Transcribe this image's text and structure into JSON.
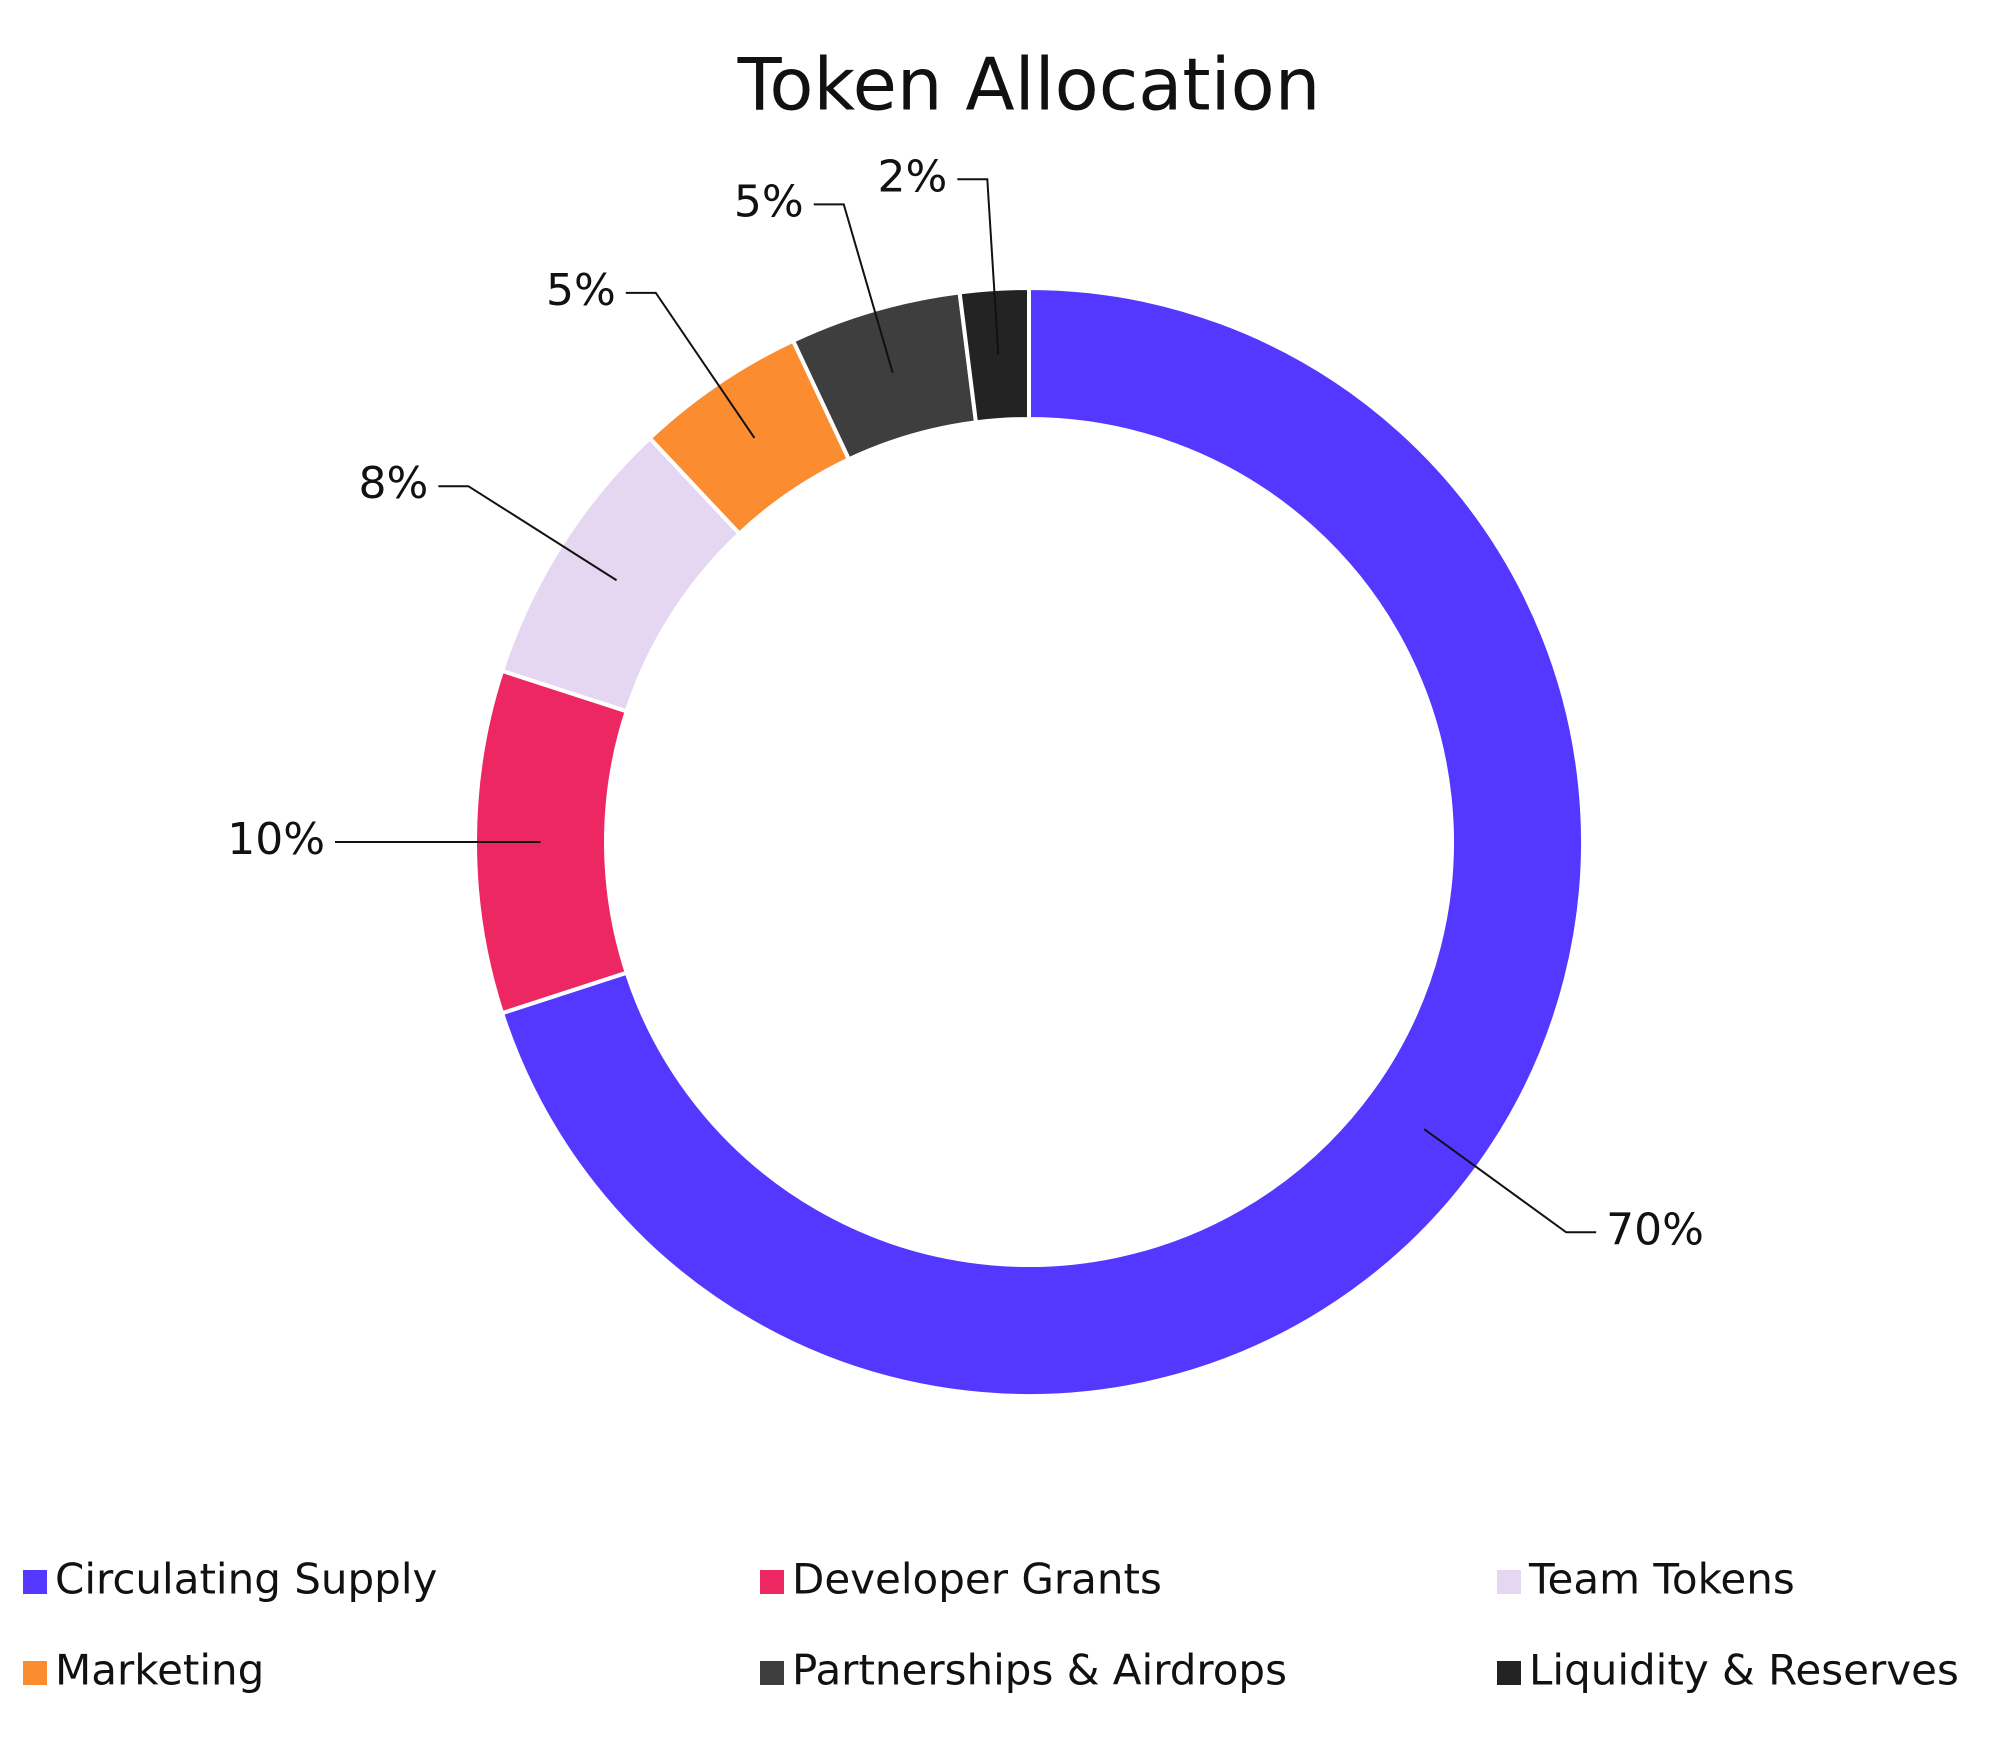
{
  "chart_data": {
    "type": "donut",
    "title": "Token Allocation",
    "series": [
      {
        "name": "Circulating Supply",
        "color": "#5438ff",
        "values": [
          70
        ],
        "value_labels": [
          "70%"
        ]
      },
      {
        "name": "Developer Grants",
        "color": "#ec2761",
        "values": [
          10
        ],
        "value_labels": [
          "10%"
        ]
      },
      {
        "name": "Team Tokens",
        "color": "#e5d6f2",
        "values": [
          8
        ],
        "value_labels": [
          "8%"
        ]
      },
      {
        "name": "Marketing",
        "color": "#fb8c30",
        "values": [
          5
        ],
        "value_labels": [
          "5%"
        ]
      },
      {
        "name": "Partnerships & Airdrops",
        "color": "#3e3e3e",
        "values": [
          5
        ],
        "value_labels": [
          "5%"
        ]
      },
      {
        "name": "Liquidity & Reserves",
        "color": "#232323",
        "values": [
          2
        ],
        "value_labels": [
          "2%"
        ]
      }
    ],
    "legend": "bottom"
  }
}
